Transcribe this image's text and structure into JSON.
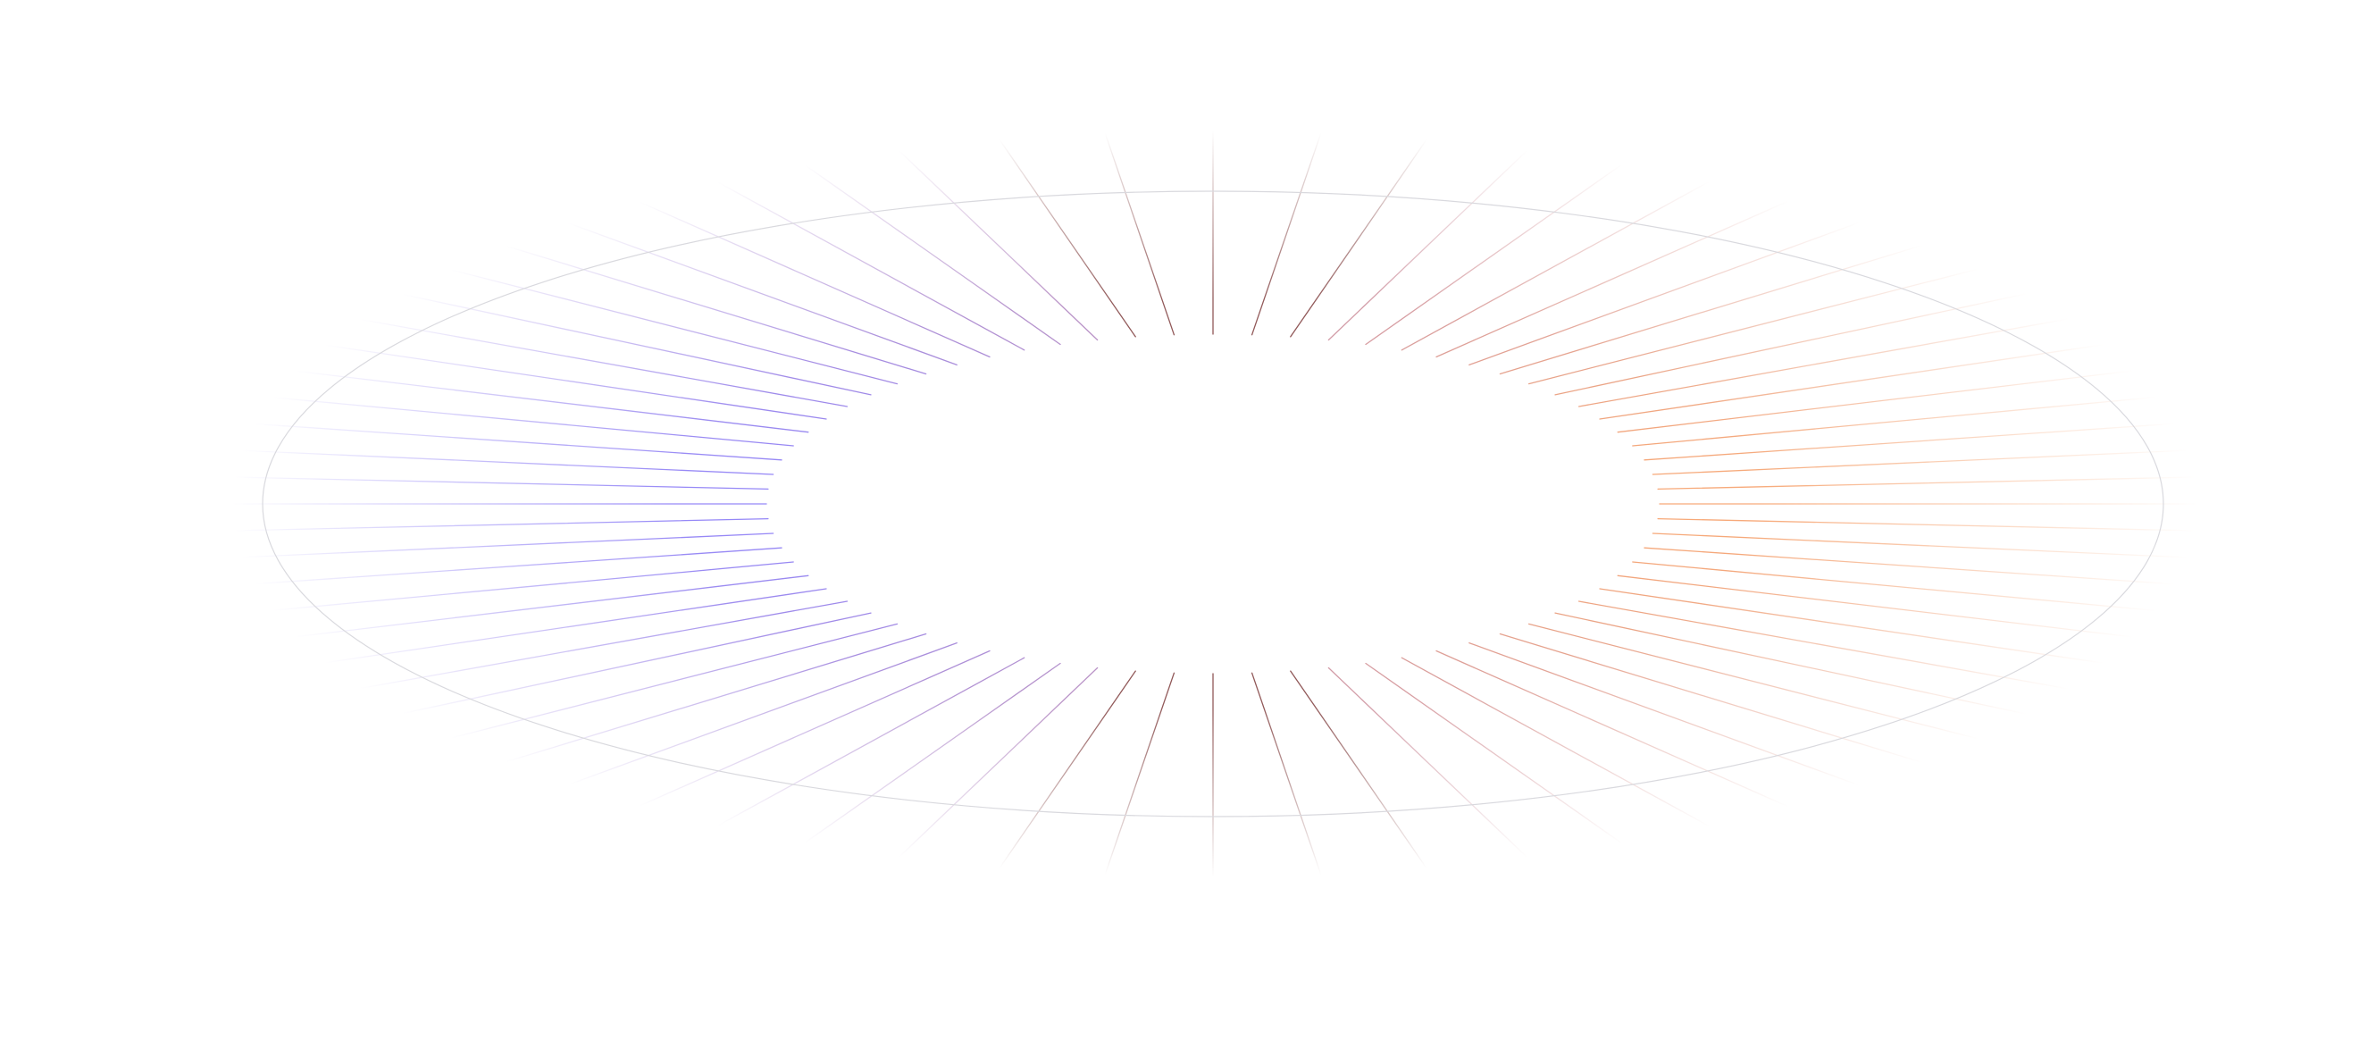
{
  "graphic": {
    "name": "radial-sunburst",
    "ray_count": 72,
    "colors": {
      "left_rays": "#8b7cf6",
      "right_rays": "#f6a06b",
      "top_center": "#e07878",
      "bottom_center": "#e07878",
      "ellipse_stroke": "#d9d9de",
      "background": "#ffffff"
    }
  }
}
